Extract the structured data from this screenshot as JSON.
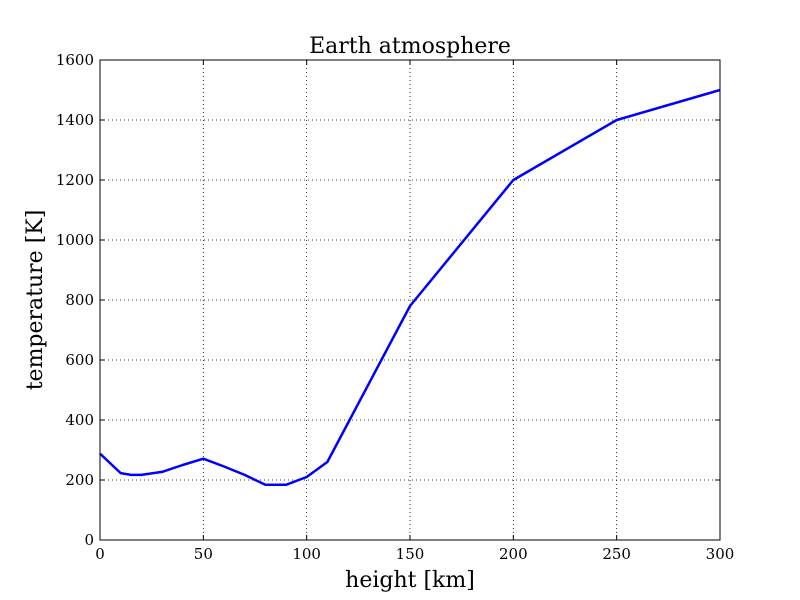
{
  "chart_data": {
    "type": "line",
    "title": "Earth atmosphere",
    "xlabel": "height [km]",
    "ylabel": "temperature [K]",
    "xlim": [
      0,
      300
    ],
    "ylim": [
      0,
      1600
    ],
    "xticks": [
      0,
      50,
      100,
      150,
      200,
      250,
      300
    ],
    "yticks": [
      0,
      200,
      400,
      600,
      800,
      1000,
      1200,
      1400,
      1600
    ],
    "grid": true,
    "series": [
      {
        "color": "#0000ff",
        "x": [
          0,
          10,
          15,
          20,
          30,
          40,
          50,
          60,
          70,
          80,
          90,
          100,
          110,
          150,
          200,
          250,
          300
        ],
        "y": [
          288,
          223,
          217,
          217,
          227,
          250,
          271,
          245,
          217,
          184,
          184,
          210,
          260,
          780,
          1200,
          1400,
          1500
        ]
      }
    ]
  }
}
